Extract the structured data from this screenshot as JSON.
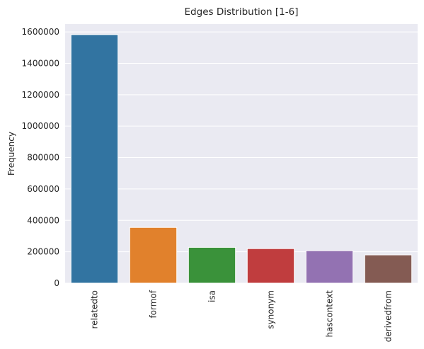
{
  "chart_data": {
    "type": "bar",
    "title": "Edges Distribution [1-6]",
    "xlabel": "",
    "ylabel": "Frequency",
    "categories": [
      "relatedto",
      "formof",
      "isa",
      "synonym",
      "hascontext",
      "derivedfrom"
    ],
    "values": [
      1583000,
      355000,
      228000,
      220000,
      207000,
      180000
    ],
    "colors": [
      "#3274a1",
      "#e1812c",
      "#3a923a",
      "#c03d3e",
      "#9372b2",
      "#845b53"
    ],
    "ylim": [
      0,
      1650000
    ],
    "yticks": [
      0,
      200000,
      400000,
      600000,
      800000,
      1000000,
      1200000,
      1400000,
      1600000
    ],
    "ytick_labels": [
      "0",
      "200000",
      "400000",
      "600000",
      "800000",
      "1000000",
      "1200000",
      "1400000",
      "1600000"
    ],
    "grid": true,
    "background": "#eaeaf2"
  }
}
